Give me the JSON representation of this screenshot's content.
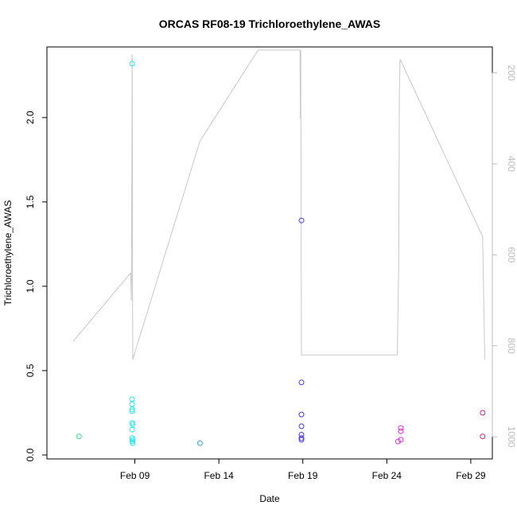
{
  "chart_data": {
    "type": "scatter",
    "title": "ORCAS RF08-19 Trichloroethylene_AWAS",
    "xlabel": "Date",
    "ylabel": "Trichloroethylene_AWAS",
    "ylim": [
      0,
      2.4
    ],
    "xlim": [
      "2016-02-04",
      "2016-03-01"
    ],
    "x_ticks": [
      {
        "date": "2016-02-09",
        "label": "Feb 09"
      },
      {
        "date": "2016-02-14",
        "label": "Feb 14"
      },
      {
        "date": "2016-02-19",
        "label": "Feb 19"
      },
      {
        "date": "2016-02-24",
        "label": "Feb 24"
      },
      {
        "date": "2016-02-29",
        "label": "Feb 29"
      }
    ],
    "y_ticks": [
      "0.0",
      "0.5",
      "1.0",
      "1.5",
      "2.0"
    ],
    "y2_ticks": [
      "200",
      "400",
      "600",
      "800",
      "1000"
    ],
    "y2lim": [
      1040,
      150
    ],
    "grid": false,
    "legend": "none",
    "series": [
      {
        "color": "#33e58a",
        "points": [
          {
            "x": "2016-02-05 16:00",
            "y": 0.11
          }
        ]
      },
      {
        "color": "#22e8e8",
        "points": [
          {
            "x": "2016-02-08 20:00",
            "y": 2.32
          },
          {
            "x": "2016-02-08 20:00",
            "y": 0.33
          },
          {
            "x": "2016-02-08 20:00",
            "y": 0.3
          },
          {
            "x": "2016-02-08 20:00",
            "y": 0.27
          },
          {
            "x": "2016-02-08 20:00",
            "y": 0.26
          },
          {
            "x": "2016-02-08 20:00",
            "y": 0.19
          },
          {
            "x": "2016-02-08 21:00",
            "y": 0.18
          },
          {
            "x": "2016-02-08 20:00",
            "y": 0.15
          },
          {
            "x": "2016-02-08 20:00",
            "y": 0.1
          },
          {
            "x": "2016-02-08 21:00",
            "y": 0.09
          },
          {
            "x": "2016-02-08 20:00",
            "y": 0.08
          },
          {
            "x": "2016-02-08 21:00",
            "y": 0.07
          }
        ]
      },
      {
        "color": "#3a9be6",
        "points": [
          {
            "x": "2016-02-12 21:00",
            "y": 0.07
          }
        ]
      },
      {
        "color": "#4a33e0",
        "points": [
          {
            "x": "2016-02-18 22:00",
            "y": 1.39
          },
          {
            "x": "2016-02-18 22:00",
            "y": 0.43
          },
          {
            "x": "2016-02-18 22:00",
            "y": 0.24
          },
          {
            "x": "2016-02-18 22:00",
            "y": 0.17
          },
          {
            "x": "2016-02-18 22:00",
            "y": 0.12
          },
          {
            "x": "2016-02-18 22:00",
            "y": 0.1
          },
          {
            "x": "2016-02-18 22:00",
            "y": 0.09
          }
        ]
      },
      {
        "color": "#d633d6",
        "points": [
          {
            "x": "2016-02-24 16:00",
            "y": 0.08
          },
          {
            "x": "2016-02-24 20:00",
            "y": 0.16
          },
          {
            "x": "2016-02-24 20:00",
            "y": 0.14
          },
          {
            "x": "2016-02-24 20:00",
            "y": 0.09
          }
        ]
      },
      {
        "color": "#d81b8c",
        "points": [
          {
            "x": "2016-02-29 17:00",
            "y": 0.25
          },
          {
            "x": "2016-02-29 17:00",
            "y": 0.11
          }
        ]
      }
    ],
    "secondary_line": {
      "color": "#c8c8c8",
      "axis": "right",
      "points": [
        {
          "x": "2016-02-05 08:00",
          "y": 790
        },
        {
          "x": "2016-02-08 18:00",
          "y": 640
        },
        {
          "x": "2016-02-08 19:00",
          "y": 700
        },
        {
          "x": "2016-02-08 19:30",
          "y": 520
        },
        {
          "x": "2016-02-08 20:00",
          "y": 160
        },
        {
          "x": "2016-02-08 21:00",
          "y": 830
        },
        {
          "x": "2016-02-12 21:00",
          "y": 350
        },
        {
          "x": "2016-02-16 08:00",
          "y": 150
        },
        {
          "x": "2016-02-18 20:00",
          "y": 150
        },
        {
          "x": "2016-02-18 20:30",
          "y": 300
        },
        {
          "x": "2016-02-18 21:00",
          "y": 150
        },
        {
          "x": "2016-02-18 22:00",
          "y": 820
        },
        {
          "x": "2016-02-24 15:00",
          "y": 820
        },
        {
          "x": "2016-02-24 17:00",
          "y": 620
        },
        {
          "x": "2016-02-24 18:00",
          "y": 240
        },
        {
          "x": "2016-02-24 19:00",
          "y": 170
        },
        {
          "x": "2016-02-29 17:00",
          "y": 560
        },
        {
          "x": "2016-02-29 20:00",
          "y": 830
        }
      ]
    }
  }
}
